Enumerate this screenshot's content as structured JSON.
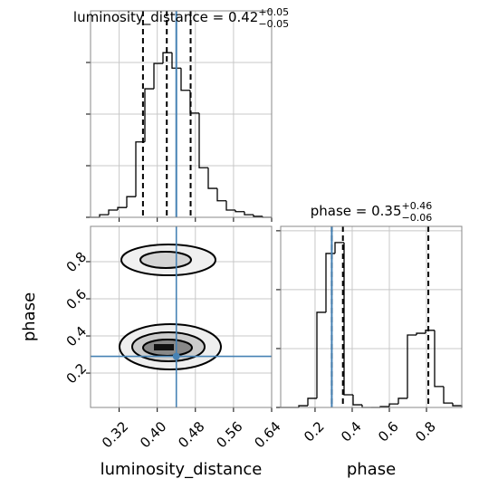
{
  "chart_data": [
    {
      "type": "histogram",
      "title": "luminosity_distance = 0.42",
      "title_sup": "+0.05",
      "title_sub": "−0.05",
      "bins": [
        0.26,
        0.279,
        0.298,
        0.317,
        0.336,
        0.355,
        0.374,
        0.393,
        0.412,
        0.431,
        0.45,
        0.469,
        0.488,
        0.507,
        0.526,
        0.545,
        0.564,
        0.583,
        0.602,
        0.621,
        0.64
      ],
      "values": [
        0,
        5,
        14,
        19,
        40,
        146,
        249,
        298,
        319,
        289,
        246,
        202,
        96,
        56,
        32,
        14,
        11,
        5,
        2,
        0
      ],
      "xlim": [
        0.26,
        0.64
      ],
      "ylim": [
        0,
        400
      ],
      "yticks": [
        0,
        100,
        200,
        300
      ],
      "quantiles": [
        0.37,
        0.42,
        0.47
      ],
      "truth": 0.44,
      "color": "#000000",
      "truth_color": "#4682b4",
      "grid": true
    },
    {
      "type": "scatter",
      "x": [
        0.35,
        0.38,
        0.4,
        0.42,
        0.44,
        0.46,
        0.48,
        0.5,
        0.39,
        0.43,
        0.45,
        0.41,
        0.37,
        0.47,
        0.52,
        0.33,
        0.36,
        0.38,
        0.4,
        0.41,
        0.42,
        0.43,
        0.44,
        0.45,
        0.46,
        0.48,
        0.5,
        0.39,
        0.41,
        0.43,
        0.47,
        0.34,
        0.53,
        0.44,
        0.4,
        0.42
      ],
      "y": [
        0.82,
        0.8,
        0.85,
        0.83,
        0.78,
        0.84,
        0.81,
        0.8,
        0.88,
        0.86,
        0.79,
        0.76,
        0.84,
        0.86,
        0.82,
        0.81,
        0.35,
        0.3,
        0.33,
        0.36,
        0.32,
        0.28,
        0.34,
        0.31,
        0.37,
        0.33,
        0.35,
        0.4,
        0.27,
        0.38,
        0.29,
        0.32,
        0.34,
        0.24,
        0.44,
        0.31
      ],
      "xlim": [
        0.26,
        0.64
      ],
      "ylim": [
        0.015,
        0.99
      ],
      "xticks": [
        0.32,
        {
          "value": 0.4,
          "label": "0.40"
        },
        0.48,
        0.56,
        0.64
      ],
      "yticks": [
        0.2,
        0.4,
        0.6,
        0.8
      ],
      "xlabel": "luminosity_distance",
      "ylabel": "phase",
      "truth_x": 0.44,
      "truth_y": 0.29,
      "color": "#9e9e9e",
      "truth_color": "#4682b4",
      "grid": true
    },
    {
      "type": "histogram",
      "title": "phase = 0.35",
      "title_sup": "+0.46",
      "title_sub": "−0.06",
      "bins": [
        0.015,
        0.06375,
        0.1125,
        0.16125,
        0.21,
        0.25875,
        0.3075,
        0.35625,
        0.405,
        0.45375,
        0.5025,
        0.55125,
        0.6,
        0.64875,
        0.6975,
        0.74625,
        0.795,
        0.84375,
        0.8925,
        0.94125,
        0.99
      ],
      "values": [
        0,
        0,
        6,
        31,
        323,
        523,
        560,
        43,
        9,
        0,
        0,
        3,
        12,
        31,
        246,
        252,
        262,
        71,
        15,
        6
      ],
      "xlim": [
        0.015,
        0.99
      ],
      "ylim": [
        0,
        615
      ],
      "yticks": [
        0,
        200,
        400,
        600
      ],
      "xticks": [
        0.2,
        0.4,
        0.6,
        0.8
      ],
      "xlabel": "phase",
      "quantiles": [
        0.29,
        0.35,
        0.81
      ],
      "truth": 0.29,
      "color": "#000000",
      "truth_color": "#4682b4",
      "grid": true
    }
  ]
}
